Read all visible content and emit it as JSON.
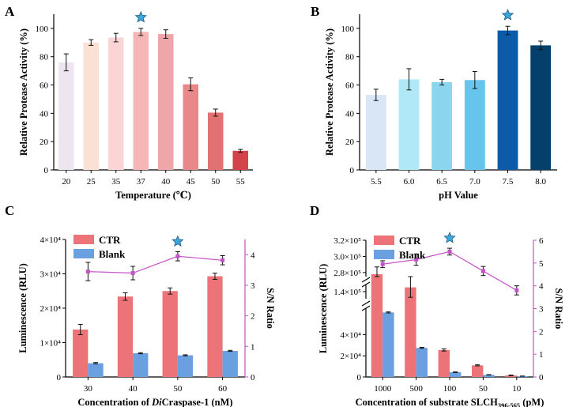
{
  "chart_data": [
    {
      "panel": "A",
      "type": "bar",
      "categories": [
        "20",
        "25",
        "35",
        "37",
        "40",
        "45",
        "50",
        "55"
      ],
      "values": [
        76,
        90,
        93.5,
        97.5,
        96,
        60.5,
        40.5,
        13.5
      ],
      "errors": [
        6,
        2,
        3,
        2.5,
        3,
        4.5,
        2.5,
        1
      ],
      "colors": [
        "#ede6f0",
        "#fbe0d4",
        "#fbd4d6",
        "#f6b6b6",
        "#eea6a8",
        "#e8888a",
        "#e27272",
        "#d4434a"
      ],
      "star_category": "37",
      "xlabel": "Temperature (℃)",
      "ylabel": "Relative Protease Activity (%)",
      "ylim": [
        0,
        110
      ],
      "yticks": [
        0,
        20,
        40,
        60,
        80,
        100
      ]
    },
    {
      "panel": "B",
      "type": "bar",
      "categories": [
        "5.5",
        "6.0",
        "6.5",
        "7.0",
        "7.5",
        "8.0"
      ],
      "values": [
        53,
        64,
        62,
        63.5,
        98.5,
        88
      ],
      "errors": [
        4,
        7.5,
        2,
        6,
        3,
        3
      ],
      "colors": [
        "#d8e6f5",
        "#b0e8f7",
        "#8bd6ee",
        "#67c4ec",
        "#0d5ba6",
        "#053f6b"
      ],
      "star_category": "7.5",
      "xlabel": "pH Value",
      "ylabel": "Relative Protease Activity (%)",
      "ylim": [
        0,
        110
      ],
      "yticks": [
        0,
        20,
        40,
        60,
        80,
        100
      ]
    },
    {
      "panel": "C",
      "type": "bar",
      "categories": [
        "30",
        "40",
        "50",
        "60"
      ],
      "series": [
        {
          "name": "CTR",
          "values": [
            13800,
            23400,
            25000,
            29300
          ],
          "errors": [
            1500,
            1100,
            900,
            900
          ],
          "color": "#ec7479"
        },
        {
          "name": "Blank",
          "values": [
            4000,
            6900,
            6300,
            7600
          ],
          "errors": [
            200,
            150,
            150,
            150
          ],
          "color": "#6a9fe0"
        }
      ],
      "line_series": {
        "name": "S/N Ratio",
        "values": [
          3.45,
          3.4,
          3.95,
          3.82
        ],
        "errors": [
          0.3,
          0.22,
          0.15,
          0.15
        ],
        "color": "#c353c6",
        "ylim": [
          0,
          4.5
        ],
        "yticks": [
          0,
          1,
          2,
          3,
          4
        ]
      },
      "star_category": "50",
      "xlabel": "Concentration of DiCraspase-1 (nM)",
      "xlabel_parts": [
        "Concentration of ",
        "Di",
        "Craspase-1 (nM)"
      ],
      "ylabel": "Luminescence (RLU)",
      "y2label": "S/N Ratio",
      "ylim": [
        0,
        40000
      ],
      "yticks": [
        "0",
        "1×10⁴",
        "2×10⁴",
        "3×10⁴",
        "4×10⁴"
      ],
      "legend": [
        "CTR",
        "Blank"
      ]
    },
    {
      "panel": "D",
      "type": "bar",
      "categories": [
        "1000",
        "500",
        "100",
        "50",
        "10"
      ],
      "series": [
        {
          "name": "CTR",
          "values": [
            278000,
            143000,
            25500,
            11000,
            1500
          ],
          "errors": [
            9000,
            7000,
            1000,
            500,
            300
          ],
          "color": "#ec7479"
        },
        {
          "name": "Blank",
          "values": [
            61000,
            27500,
            4500,
            2000,
            800
          ],
          "errors": [
            500,
            500,
            300,
            200,
            100
          ],
          "color": "#6a9fe0"
        }
      ],
      "line_series": {
        "name": "S/N Ratio",
        "values": [
          4.95,
          5.15,
          5.5,
          4.65,
          3.8
        ],
        "errors": [
          0.15,
          0.25,
          0.15,
          0.2,
          0.2
        ],
        "color": "#c353c6",
        "ylim": [
          0,
          6
        ],
        "yticks": [
          0,
          1,
          2,
          3,
          4,
          5,
          6
        ]
      },
      "star_category": "100",
      "xlabel": "Concentration of substrate SLCH396-565 (pM)",
      "xlabel_parts": [
        "Concentration of substrate SLCH",
        "396-565",
        " (pM)"
      ],
      "ylabel": "Luminescence (RLU)",
      "y2label": "S/N Ratio",
      "broken_axis": {
        "segments": [
          [
            0,
            65000
          ],
          [
            135000,
            145000
          ],
          [
            275000,
            320000
          ]
        ]
      },
      "yticks": [
        "0",
        "2×10⁴",
        "4×10⁴",
        "1.4×10⁵",
        "2.8×10⁵",
        "3.0×10⁵",
        "3.2×10⁵"
      ],
      "ytick_values": [
        0,
        20000,
        40000,
        140000,
        280000,
        300000,
        320000
      ],
      "legend": [
        "CTR",
        "Blank"
      ]
    }
  ],
  "panels": [
    "A",
    "B",
    "C",
    "D"
  ],
  "colors": {
    "star": "#3aa8d8",
    "star_stroke": "#1f5a8a",
    "ratio_axis": "#c353c6"
  }
}
